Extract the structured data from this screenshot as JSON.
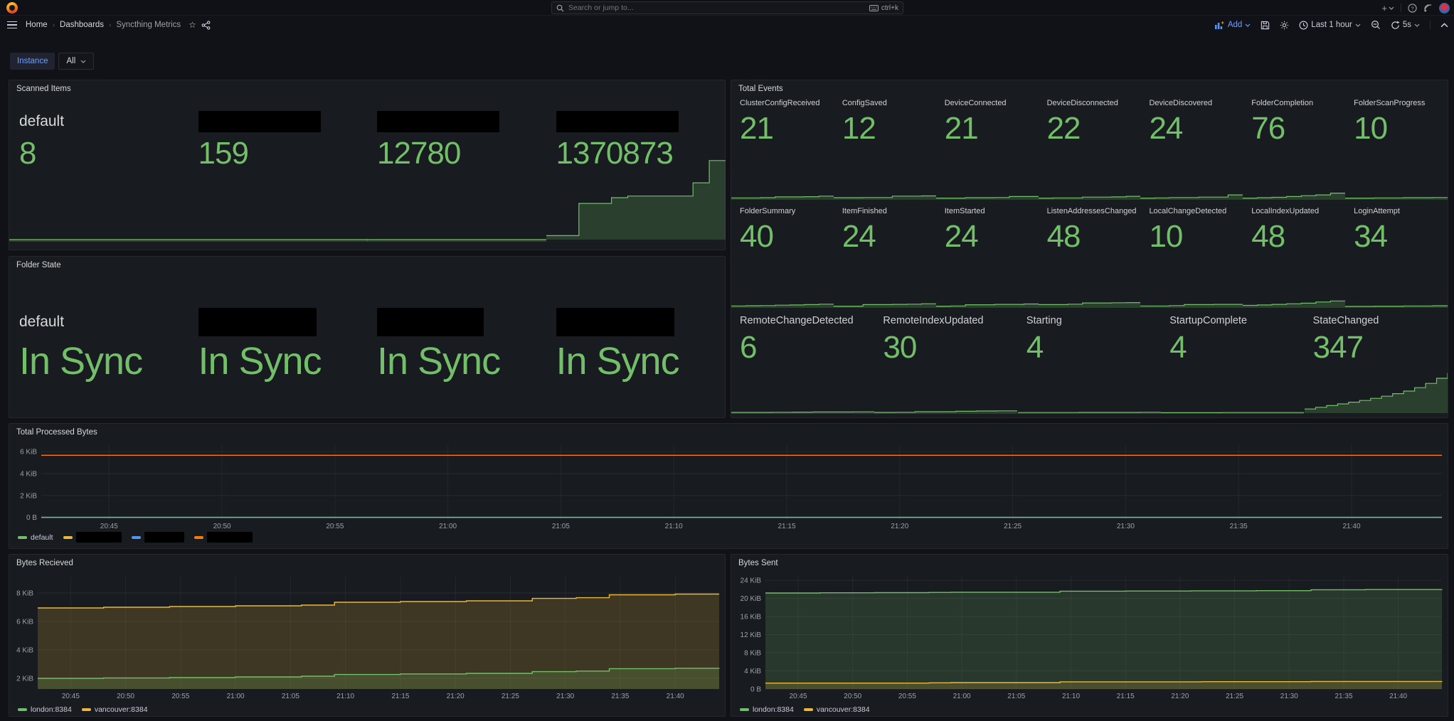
{
  "colors": {
    "green": "#73bf69",
    "yellow": "#eab839",
    "blue": "#5794f2",
    "orange": "#ff780a",
    "link_blue": "#6e9fff"
  },
  "topnav": {
    "search_placeholder": "Search or jump to...",
    "search_shortcut": "ctrl+k"
  },
  "breadcrumb": {
    "home": "Home",
    "dashboards": "Dashboards",
    "current": "Syncthing Metrics"
  },
  "toolbar": {
    "add": "Add",
    "time_range": "Last 1 hour",
    "refresh": "5s"
  },
  "filters": {
    "instance_label": "Instance",
    "instance_value": "All"
  },
  "scanned_items": {
    "title": "Scanned Items",
    "stats": [
      {
        "label": "default",
        "value": "8",
        "spark": [
          0.25,
          0.25
        ]
      },
      {
        "label": "",
        "value": "159",
        "spark": [
          0.25,
          0.25
        ]
      },
      {
        "label": "",
        "value": "12780",
        "spark": [
          0.25,
          0.25
        ]
      },
      {
        "label": "",
        "value": "1370873",
        "spark": [
          0.04,
          0.04,
          0.43,
          0.43,
          0.5,
          0.52,
          0.52,
          0.52,
          0.52,
          0.68,
          0.95,
          0.95
        ]
      }
    ]
  },
  "folder_state": {
    "title": "Folder State",
    "stats": [
      {
        "label": "default",
        "value": "In Sync"
      },
      {
        "label": "",
        "value": "In Sync"
      },
      {
        "label": "",
        "value": "In Sync"
      },
      {
        "label": "",
        "value": "In Sync"
      }
    ]
  },
  "total_events": {
    "title": "Total Events",
    "row1": [
      {
        "label": "ClusterConfigReceived",
        "value": "21",
        "spark": [
          0.12,
          0.12,
          0.14,
          0.22,
          0.22,
          0.24,
          0.3,
          0.3
        ]
      },
      {
        "label": "ConfigSaved",
        "value": "12",
        "spark": [
          0.14,
          0.14,
          0.16,
          0.16,
          0.3,
          0.3,
          0.32,
          0.32
        ]
      },
      {
        "label": "DeviceConnected",
        "value": "21",
        "spark": [
          0.1,
          0.1,
          0.14,
          0.14,
          0.16,
          0.26,
          0.26,
          0.3
        ]
      },
      {
        "label": "DeviceDisconnected",
        "value": "22",
        "spark": [
          0.1,
          0.12,
          0.12,
          0.2,
          0.2,
          0.22,
          0.28,
          0.28
        ]
      },
      {
        "label": "DeviceDiscovered",
        "value": "24",
        "spark": [
          0.1,
          0.12,
          0.16,
          0.16,
          0.2,
          0.2,
          0.42,
          0.42
        ]
      },
      {
        "label": "FolderCompletion",
        "value": "76",
        "spark": [
          0.1,
          0.14,
          0.18,
          0.26,
          0.34,
          0.42,
          0.6,
          0.62
        ]
      },
      {
        "label": "FolderScanProgress",
        "value": "10",
        "spark": [
          0.1,
          0.1,
          0.12,
          0.12,
          0.14,
          0.14,
          0.16,
          0.16
        ]
      }
    ],
    "row2": [
      {
        "label": "FolderSummary",
        "value": "40",
        "spark": [
          0.12,
          0.14,
          0.16,
          0.2,
          0.22,
          0.26,
          0.3,
          0.32
        ]
      },
      {
        "label": "ItemFinished",
        "value": "24",
        "spark": [
          0.1,
          0.1,
          0.26,
          0.26,
          0.28,
          0.3,
          0.34,
          0.34
        ]
      },
      {
        "label": "ItemStarted",
        "value": "24",
        "spark": [
          0.1,
          0.12,
          0.24,
          0.24,
          0.28,
          0.28,
          0.32,
          0.32
        ]
      },
      {
        "label": "ListenAddressesChanged",
        "value": "48",
        "spark": [
          0.26,
          0.26,
          0.3,
          0.42,
          0.42,
          0.44,
          0.46,
          0.46
        ]
      },
      {
        "label": "LocalChangeDetected",
        "value": "10",
        "spark": [
          0.12,
          0.12,
          0.16,
          0.26,
          0.26,
          0.28,
          0.28,
          0.3
        ]
      },
      {
        "label": "LocalIndexUpdated",
        "value": "48",
        "spark": [
          0.18,
          0.22,
          0.28,
          0.34,
          0.4,
          0.52,
          0.62,
          0.64
        ]
      },
      {
        "label": "LoginAttempt",
        "value": "34",
        "spark": [
          0.08,
          0.08,
          0.1,
          0.1,
          0.12,
          0.12,
          0.14,
          0.14
        ]
      }
    ],
    "row3": [
      {
        "label": "RemoteChangeDetected",
        "value": "6",
        "spark": [
          0.1,
          0.1,
          0.12,
          0.14,
          0.16,
          0.16,
          0.18,
          0.18
        ]
      },
      {
        "label": "RemoteIndexUpdated",
        "value": "30",
        "spark": [
          0.1,
          0.12,
          0.2,
          0.2,
          0.26,
          0.3,
          0.32,
          0.34
        ]
      },
      {
        "label": "Starting",
        "value": "4",
        "spark": [
          0.08,
          0.08,
          0.08,
          0.1,
          0.1,
          0.1,
          0.12,
          0.12
        ]
      },
      {
        "label": "StartupComplete",
        "value": "4",
        "spark": [
          0.06,
          0.06,
          0.06,
          0.08,
          0.08,
          0.08,
          0.08,
          0.08
        ]
      },
      {
        "label": "StateChanged",
        "value": "347",
        "spark": [
          0.08,
          0.12,
          0.16,
          0.2,
          0.24,
          0.28,
          0.33,
          0.38,
          0.44,
          0.5,
          0.58,
          0.68,
          0.8,
          0.92
        ]
      }
    ]
  },
  "chart_data": [
    {
      "id": "total-processed-bytes",
      "type": "line",
      "title": "Total Processed Bytes",
      "xlim": [
        0,
        62
      ],
      "ylim": [
        -150,
        6750
      ],
      "x_ticks": [
        {
          "t": 3,
          "label": "20:45"
        },
        {
          "t": 8,
          "label": "20:50"
        },
        {
          "t": 13,
          "label": "20:55"
        },
        {
          "t": 18,
          "label": "21:00"
        },
        {
          "t": 23,
          "label": "21:05"
        },
        {
          "t": 28,
          "label": "21:10"
        },
        {
          "t": 33,
          "label": "21:15"
        },
        {
          "t": 38,
          "label": "21:20"
        },
        {
          "t": 43,
          "label": "21:25"
        },
        {
          "t": 48,
          "label": "21:30"
        },
        {
          "t": 53,
          "label": "21:35"
        },
        {
          "t": 58,
          "label": "21:40"
        }
      ],
      "y_ticks": [
        {
          "v": 0,
          "label": "0 B"
        },
        {
          "v": 2048,
          "label": "2 KiB"
        },
        {
          "v": 4096,
          "label": "4 KiB"
        },
        {
          "v": 6144,
          "label": "6 KiB"
        }
      ],
      "series": [
        {
          "name": "",
          "color": "#eab839",
          "fill": false,
          "points": [
            [
              0,
              5
            ],
            [
              62,
              5
            ]
          ]
        },
        {
          "name": "",
          "color": "#5794f2",
          "fill": false,
          "points": [
            [
              0,
              2
            ],
            [
              62,
              2
            ]
          ]
        },
        {
          "name": "",
          "color": "#ff780a",
          "fill": false,
          "points": [
            [
              0,
              5800
            ],
            [
              62,
              5800
            ]
          ]
        },
        {
          "name": "default",
          "color": "#73bf69",
          "fill": false,
          "points": [
            [
              0,
              20
            ],
            [
              62,
              20
            ]
          ]
        }
      ],
      "legend": [
        {
          "label": "default",
          "redacted": false
        },
        {
          "label": "",
          "redacted": true
        },
        {
          "label": "",
          "redacted": true
        },
        {
          "label": "",
          "redacted": true
        }
      ]
    },
    {
      "id": "bytes-recieved",
      "type": "area",
      "title": "Bytes Recieved",
      "xlim": [
        0,
        62
      ],
      "ylim": [
        1280,
        9370
      ],
      "x_ticks": [
        {
          "t": 3,
          "label": "20:45"
        },
        {
          "t": 8,
          "label": "20:50"
        },
        {
          "t": 13,
          "label": "20:55"
        },
        {
          "t": 18,
          "label": "21:00"
        },
        {
          "t": 23,
          "label": "21:05"
        },
        {
          "t": 28,
          "label": "21:10"
        },
        {
          "t": 33,
          "label": "21:15"
        },
        {
          "t": 38,
          "label": "21:20"
        },
        {
          "t": 43,
          "label": "21:25"
        },
        {
          "t": 48,
          "label": "21:30"
        },
        {
          "t": 53,
          "label": "21:35"
        },
        {
          "t": 58,
          "label": "21:40"
        }
      ],
      "y_ticks": [
        {
          "v": 2048,
          "label": "2 KiB"
        },
        {
          "v": 4096,
          "label": "4 KiB"
        },
        {
          "v": 6144,
          "label": "6 KiB"
        },
        {
          "v": 8192,
          "label": "8 KiB"
        }
      ],
      "series": [
        {
          "name": "vancouver:8384",
          "color": "#eab839",
          "fill": true,
          "points": [
            [
              0,
              7117
            ],
            [
              6,
              7168
            ],
            [
              12,
              7219
            ],
            [
              18,
              7270
            ],
            [
              24,
              7322
            ],
            [
              27,
              7526
            ],
            [
              33,
              7577
            ],
            [
              39,
              7629
            ],
            [
              45,
              7803
            ],
            [
              49,
              7854
            ],
            [
              52,
              8064
            ],
            [
              58,
              8115
            ],
            [
              62,
              8115
            ]
          ]
        },
        {
          "name": "london:8384",
          "color": "#73bf69",
          "fill": true,
          "points": [
            [
              0,
              2048
            ],
            [
              6,
              2079
            ],
            [
              12,
              2110
            ],
            [
              18,
              2150
            ],
            [
              24,
              2202
            ],
            [
              27,
              2325
            ],
            [
              33,
              2366
            ],
            [
              39,
              2407
            ],
            [
              45,
              2530
            ],
            [
              49,
              2571
            ],
            [
              52,
              2745
            ],
            [
              58,
              2776
            ],
            [
              62,
              2786
            ]
          ]
        }
      ],
      "legend": [
        {
          "label": "london:8384",
          "redacted": false
        },
        {
          "label": "vancouver:8384",
          "redacted": false
        }
      ]
    },
    {
      "id": "bytes-sent",
      "type": "area",
      "title": "Bytes Sent",
      "xlim": [
        0,
        62
      ],
      "ylim": [
        0,
        25400
      ],
      "x_ticks": [
        {
          "t": 3,
          "label": "20:45"
        },
        {
          "t": 8,
          "label": "20:50"
        },
        {
          "t": 13,
          "label": "20:55"
        },
        {
          "t": 18,
          "label": "21:00"
        },
        {
          "t": 23,
          "label": "21:05"
        },
        {
          "t": 28,
          "label": "21:10"
        },
        {
          "t": 33,
          "label": "21:15"
        },
        {
          "t": 38,
          "label": "21:20"
        },
        {
          "t": 43,
          "label": "21:25"
        },
        {
          "t": 48,
          "label": "21:30"
        },
        {
          "t": 53,
          "label": "21:35"
        },
        {
          "t": 58,
          "label": "21:40"
        }
      ],
      "y_ticks": [
        {
          "v": 0,
          "label": "0 B"
        },
        {
          "v": 4096,
          "label": "4 KiB"
        },
        {
          "v": 8192,
          "label": "8 KiB"
        },
        {
          "v": 12288,
          "label": "12 KiB"
        },
        {
          "v": 16384,
          "label": "16 KiB"
        },
        {
          "v": 20480,
          "label": "20 KiB"
        },
        {
          "v": 24576,
          "label": "24 KiB"
        }
      ],
      "series": [
        {
          "name": "london:8384",
          "color": "#73bf69",
          "fill": true,
          "points": [
            [
              0,
              21709
            ],
            [
              5,
              21750
            ],
            [
              10,
              21790
            ],
            [
              15,
              21832
            ],
            [
              17,
              21873
            ],
            [
              27,
              22118
            ],
            [
              33,
              22159
            ],
            [
              39,
              22200
            ],
            [
              45,
              22241
            ],
            [
              50,
              22446
            ],
            [
              55,
              22487
            ],
            [
              62,
              22528
            ]
          ]
        },
        {
          "name": "vancouver:8384",
          "color": "#eab839",
          "fill": true,
          "points": [
            [
              0,
              1331
            ],
            [
              15,
              1393
            ],
            [
              17,
              1454
            ],
            [
              27,
              1618
            ],
            [
              40,
              1659
            ],
            [
              50,
              1700
            ],
            [
              62,
              1720
            ]
          ]
        }
      ],
      "legend": [
        {
          "label": "london:8384",
          "redacted": false
        },
        {
          "label": "vancouver:8384",
          "redacted": false
        }
      ]
    }
  ]
}
